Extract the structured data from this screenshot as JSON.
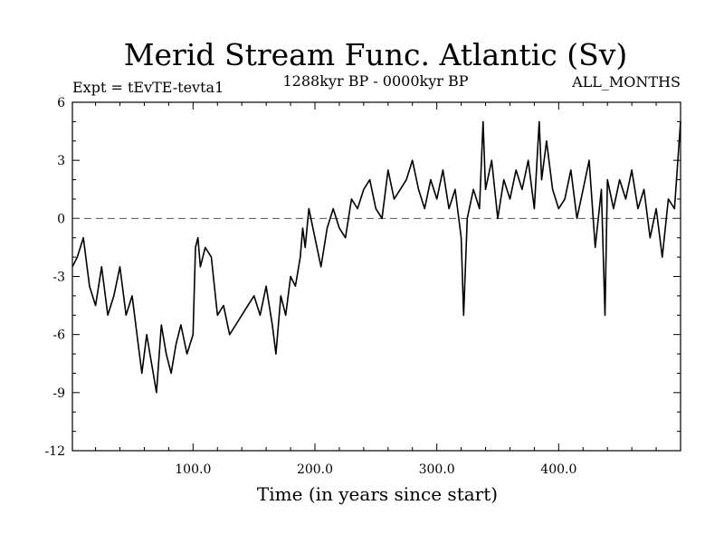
{
  "chart_data": {
    "type": "line",
    "title": "Merid Stream Func. Atlantic (Sv)",
    "left_label": "Expt = tEvTE-tevta1",
    "center_label": "1288kyr BP - 0000kyr BP",
    "right_label": "ALL_MONTHS",
    "xlabel": "Time (in years since start)",
    "ylabel": "",
    "xlim": [
      1,
      500
    ],
    "ylim": [
      -12,
      6
    ],
    "x_ticks": [
      100,
      200,
      300,
      400
    ],
    "x_tick_labels": [
      "100.0",
      "200.0",
      "300.0",
      "400.0"
    ],
    "y_ticks": [
      -12,
      -9,
      -6,
      -3,
      0,
      3,
      6
    ],
    "y_tick_labels": [
      "-12",
      "-9",
      "-6",
      "-3",
      "0",
      "3",
      "6"
    ],
    "reference_line": 0,
    "grid": false,
    "series": [
      {
        "name": "Merid Stream Func. Atlantic",
        "x": [
          1,
          5,
          10,
          15,
          20,
          25,
          30,
          35,
          40,
          45,
          50,
          55,
          58,
          62,
          66,
          70,
          74,
          78,
          82,
          86,
          90,
          95,
          100,
          102,
          104,
          106,
          110,
          115,
          120,
          125,
          130,
          135,
          140,
          145,
          150,
          155,
          160,
          165,
          168,
          172,
          176,
          180,
          184,
          188,
          190,
          192,
          195,
          200,
          205,
          210,
          215,
          220,
          225,
          230,
          235,
          240,
          245,
          250,
          255,
          260,
          265,
          270,
          275,
          280,
          285,
          290,
          295,
          300,
          305,
          310,
          315,
          320,
          322,
          325,
          330,
          335,
          338,
          340,
          345,
          350,
          355,
          360,
          365,
          370,
          375,
          380,
          384,
          386,
          390,
          395,
          400,
          405,
          410,
          415,
          420,
          425,
          430,
          435,
          438,
          440,
          445,
          450,
          455,
          460,
          465,
          470,
          475,
          480,
          485,
          490,
          495,
          500
        ],
        "values": [
          -2.5,
          -2.0,
          -1.0,
          -3.5,
          -4.5,
          -2.5,
          -5.0,
          -4.0,
          -2.5,
          -5.0,
          -4.0,
          -6.5,
          -8.0,
          -6.0,
          -7.5,
          -9.0,
          -5.5,
          -7.0,
          -8.0,
          -6.5,
          -5.5,
          -7.0,
          -6.0,
          -1.5,
          -1.0,
          -2.5,
          -1.5,
          -2.0,
          -5.0,
          -4.5,
          -6.0,
          -5.5,
          -5.0,
          -4.5,
          -4.0,
          -5.0,
          -3.5,
          -5.5,
          -7.0,
          -4.0,
          -5.0,
          -3.0,
          -3.5,
          -2.0,
          -0.5,
          -1.5,
          0.5,
          -1.0,
          -2.5,
          -0.5,
          0.5,
          -0.5,
          -1.0,
          1.0,
          0.5,
          1.5,
          2.0,
          0.5,
          0.0,
          2.5,
          1.0,
          1.5,
          2.0,
          3.0,
          1.5,
          0.5,
          2.0,
          1.0,
          2.5,
          0.5,
          1.5,
          -1.0,
          -5.0,
          0.0,
          1.5,
          0.5,
          5.0,
          1.5,
          3.0,
          0.0,
          2.0,
          1.0,
          2.5,
          1.5,
          3.0,
          0.5,
          5.0,
          2.0,
          4.0,
          1.5,
          0.5,
          1.0,
          2.5,
          0.0,
          1.5,
          3.0,
          -1.5,
          1.5,
          -5.0,
          2.0,
          0.5,
          2.0,
          1.0,
          2.5,
          0.5,
          1.5,
          -1.0,
          0.5,
          -2.0,
          1.0,
          0.5,
          5.0
        ]
      }
    ]
  }
}
